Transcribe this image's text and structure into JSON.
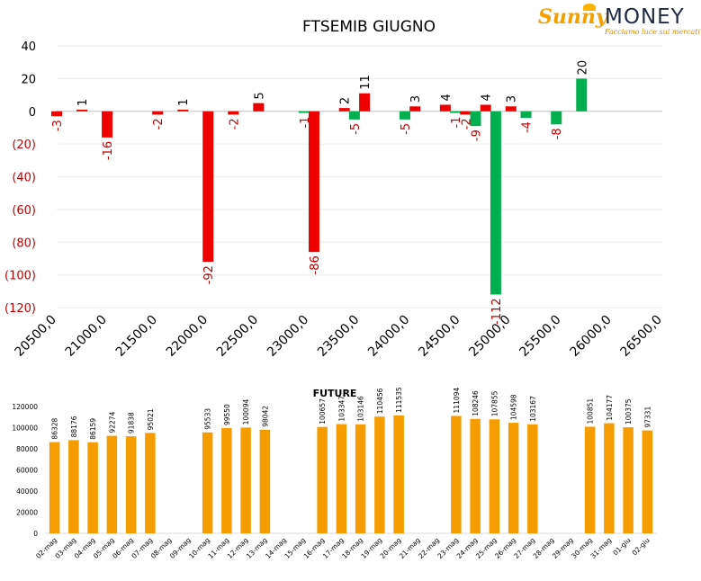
{
  "logo": {
    "brand_left": "Sunny",
    "brand_right": "MONEY",
    "tagline": "Facciamo luce sui mercati"
  },
  "colors": {
    "positive": "#ee0000",
    "negative": "#00b050",
    "future_bar": "#f59c00",
    "label_positive": "#000000",
    "label_negative": "#c00000",
    "axis_negative": "#c00000"
  },
  "chart_data": [
    {
      "type": "bar",
      "title": "FTSEMIB GIUGNO",
      "xlabel": "",
      "ylabel": "",
      "ylim": [
        -120,
        40
      ],
      "yticks": [
        {
          "value": 40,
          "label": "40"
        },
        {
          "value": 20,
          "label": "20"
        },
        {
          "value": 0,
          "label": "0"
        },
        {
          "value": -20,
          "label": "(20)"
        },
        {
          "value": -40,
          "label": "(40)"
        },
        {
          "value": -60,
          "label": "(60)"
        },
        {
          "value": -80,
          "label": "(80)"
        },
        {
          "value": -100,
          "label": "(100)"
        },
        {
          "value": -120,
          "label": "(120)"
        }
      ],
      "x_range": [
        20500,
        26500
      ],
      "x_tick_labels": [
        "20500,0",
        "21000,0",
        "21500,0",
        "22000,0",
        "22500,0",
        "23000,0",
        "23500,0",
        "24000,0",
        "24500,0",
        "25000,0",
        "25500,0",
        "26000,0",
        "26500,0"
      ],
      "grid": true,
      "legend": "none",
      "bars": [
        {
          "strike": 20500,
          "value": -3,
          "label": "-3",
          "color": "red"
        },
        {
          "strike": 20750,
          "value": 1,
          "label": "1",
          "color": "red"
        },
        {
          "strike": 21000,
          "value": -16,
          "label": "-16",
          "color": "red"
        },
        {
          "strike": 21500,
          "value": -2,
          "label": "-2",
          "color": "red"
        },
        {
          "strike": 21750,
          "value": 1,
          "label": "1",
          "color": "red"
        },
        {
          "strike": 22000,
          "value": -92,
          "label": "-92",
          "color": "red"
        },
        {
          "strike": 22250,
          "value": -2,
          "label": "-2",
          "color": "red"
        },
        {
          "strike": 22500,
          "value": 5,
          "label": "5",
          "color": "red"
        },
        {
          "strike": 22950,
          "value": -1,
          "label": "-1",
          "color": "green"
        },
        {
          "strike": 23050,
          "value": -86,
          "label": "-86",
          "color": "red"
        },
        {
          "strike": 23350,
          "value": 2,
          "label": "2",
          "color": "red"
        },
        {
          "strike": 23450,
          "value": -5,
          "label": "-5",
          "color": "green"
        },
        {
          "strike": 23550,
          "value": 11,
          "label": "11",
          "color": "red"
        },
        {
          "strike": 23950,
          "value": -5,
          "label": "-5",
          "color": "green"
        },
        {
          "strike": 24050,
          "value": 3,
          "label": "3",
          "color": "red"
        },
        {
          "strike": 24350,
          "value": 4,
          "label": "4",
          "color": "red"
        },
        {
          "strike": 24450,
          "value": -1,
          "label": "-1",
          "color": "green"
        },
        {
          "strike": 24550,
          "value": -2,
          "label": "-2",
          "color": "red"
        },
        {
          "strike": 24650,
          "value": -9,
          "label": "-9",
          "color": "green"
        },
        {
          "strike": 24750,
          "value": 4,
          "label": "4",
          "color": "red"
        },
        {
          "strike": 24850,
          "value": -112,
          "label": "-112",
          "color": "green"
        },
        {
          "strike": 25000,
          "value": 3,
          "label": "3",
          "color": "red"
        },
        {
          "strike": 25150,
          "value": -4,
          "label": "-4",
          "color": "green"
        },
        {
          "strike": 25450,
          "value": -8,
          "label": "-8",
          "color": "green"
        },
        {
          "strike": 25700,
          "value": 20,
          "label": "20",
          "color": "green"
        }
      ]
    },
    {
      "type": "bar",
      "title": "FUTURE",
      "xlabel": "",
      "ylabel": "",
      "ylim": [
        0,
        120000
      ],
      "yticks": [
        0,
        20000,
        40000,
        60000,
        80000,
        100000,
        120000
      ],
      "grid": false,
      "legend": "none",
      "categories": [
        "02-mag",
        "03-mag",
        "04-mag",
        "05-mag",
        "06-mag",
        "07-mag",
        "08-mag",
        "09-mag",
        "10-mag",
        "11-mag",
        "12-mag",
        "13-mag",
        "14-mag",
        "15-mag",
        "16-mag",
        "17-mag",
        "18-mag",
        "19-mag",
        "20-mag",
        "21-mag",
        "22-mag",
        "23-mag",
        "24-mag",
        "25-mag",
        "26-mag",
        "27-mag",
        "28-mag",
        "29-mag",
        "30-mag",
        "31-mag",
        "01-giu",
        "02-giu"
      ],
      "values": [
        86328,
        88176,
        86159,
        92274,
        91838,
        95021,
        null,
        null,
        95533,
        99550,
        100094,
        98042,
        null,
        null,
        100657,
        103347,
        103146,
        110456,
        111535,
        null,
        null,
        111094,
        108246,
        107855,
        104598,
        103167,
        null,
        null,
        100851,
        104177,
        100375,
        97331
      ]
    }
  ]
}
